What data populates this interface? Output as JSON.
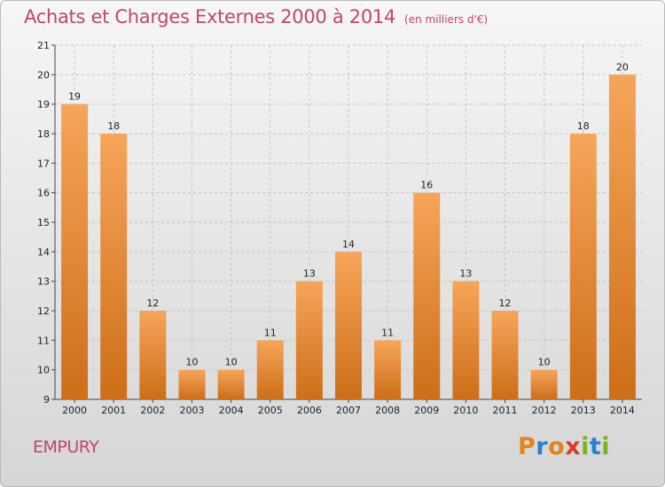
{
  "header": {
    "title": "Achats et Charges Externes 2000 à 2014",
    "unit": "(en milliers d'€)"
  },
  "commune": "EMPURY",
  "logo": {
    "letters": [
      {
        "ch": "P",
        "color": "#e8821f"
      },
      {
        "ch": "r",
        "color": "#2a7fd0"
      },
      {
        "ch": "o",
        "color": "#e8821f"
      },
      {
        "ch": "x",
        "color": "#d83a2e"
      },
      {
        "ch": "i",
        "color": "#7ab31f"
      },
      {
        "ch": "t",
        "color": "#2a7fd0"
      },
      {
        "ch": "i",
        "color": "#7ab31f"
      }
    ]
  },
  "colors": {
    "bar_light": "#f6a55a",
    "bar_dark": "#cd6e18",
    "accent_text": "#c0476c"
  },
  "chart_data": {
    "type": "bar",
    "title": "Achats et Charges Externes 2000 à 2014",
    "categories": [
      "2000",
      "2001",
      "2002",
      "2003",
      "2004",
      "2005",
      "2006",
      "2007",
      "2008",
      "2009",
      "2010",
      "2011",
      "2012",
      "2013",
      "2014"
    ],
    "values": [
      19,
      18,
      12,
      10,
      10,
      11,
      13,
      14,
      11,
      16,
      13,
      12,
      10,
      18,
      20
    ],
    "ylim": [
      9,
      21
    ],
    "yticks": [
      9,
      10,
      11,
      12,
      13,
      14,
      15,
      16,
      17,
      18,
      19,
      20,
      21
    ],
    "grid": true
  }
}
